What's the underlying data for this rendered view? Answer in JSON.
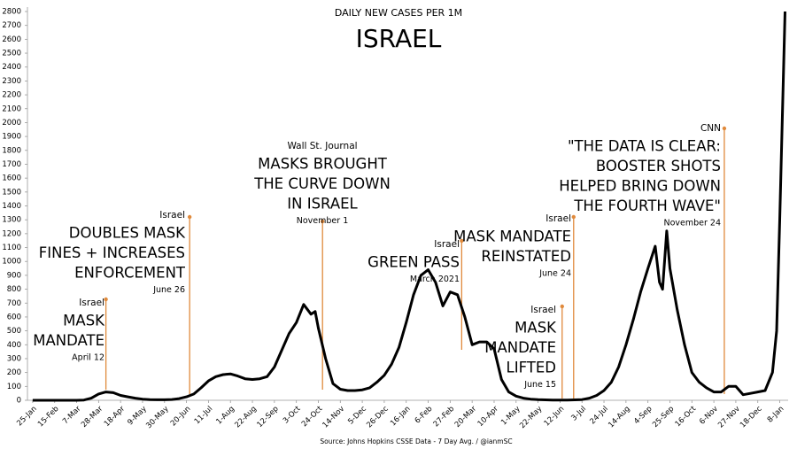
{
  "chart_data": {
    "type": "line",
    "title": "DAILY NEW CASES PER 1M",
    "subtitle": "ISRAEL",
    "source": "Source: Johns Hopkins CSSE Data - 7 Day Avg. / @ianmSC",
    "color": "#000000",
    "annotation_color": "#e08a3c",
    "x": [
      0,
      14,
      28,
      42,
      49,
      56,
      63,
      70,
      77,
      84,
      91,
      98,
      105,
      112,
      119,
      126,
      133,
      140,
      147,
      154,
      161,
      168,
      175,
      182,
      189,
      196,
      203,
      210,
      217,
      224,
      231,
      238,
      245,
      252,
      259,
      266,
      270,
      273,
      280,
      287,
      294,
      301,
      308,
      315,
      322,
      329,
      336,
      343,
      350,
      357,
      364,
      371,
      378,
      385,
      392,
      399,
      406,
      413,
      420,
      427,
      434,
      441,
      448,
      455,
      462,
      469,
      476,
      483,
      490,
      497,
      504,
      511,
      518,
      525,
      532,
      539,
      546,
      553,
      560,
      567,
      574,
      581,
      588,
      595,
      599,
      602,
      606,
      609,
      616,
      623,
      630,
      637,
      644,
      651,
      658,
      665,
      672,
      679,
      686,
      693,
      700,
      707,
      711,
      714,
      717,
      719
    ],
    "values": [
      0,
      0,
      0,
      0,
      2,
      15,
      45,
      60,
      55,
      35,
      25,
      15,
      8,
      5,
      4,
      4,
      6,
      12,
      25,
      45,
      90,
      140,
      170,
      185,
      190,
      175,
      155,
      150,
      155,
      170,
      240,
      360,
      480,
      560,
      690,
      620,
      640,
      520,
      300,
      120,
      80,
      70,
      70,
      75,
      90,
      130,
      180,
      260,
      380,
      560,
      760,
      900,
      940,
      850,
      680,
      780,
      760,
      600,
      400,
      420,
      420,
      370,
      150,
      60,
      30,
      15,
      8,
      5,
      3,
      2,
      2,
      2,
      3,
      5,
      15,
      35,
      70,
      130,
      240,
      400,
      580,
      780,
      950,
      1110,
      850,
      800,
      1220,
      950,
      650,
      400,
      200,
      130,
      90,
      60,
      60,
      100,
      100,
      40,
      50,
      60,
      70,
      200,
      500,
      1300,
      2200,
      2800
    ],
    "xlim": [
      -5,
      722
    ],
    "xticks": [
      {
        "value": 0,
        "label": "25-Jan"
      },
      {
        "value": 21,
        "label": "15-Feb"
      },
      {
        "value": 42,
        "label": "7-Mar"
      },
      {
        "value": 63,
        "label": "28-Mar"
      },
      {
        "value": 84,
        "label": "18-Apr"
      },
      {
        "value": 105,
        "label": "9-May"
      },
      {
        "value": 126,
        "label": "30-May"
      },
      {
        "value": 147,
        "label": "20-Jun"
      },
      {
        "value": 168,
        "label": "11-Jul"
      },
      {
        "value": 189,
        "label": "1-Aug"
      },
      {
        "value": 210,
        "label": "22-Aug"
      },
      {
        "value": 231,
        "label": "12-Sep"
      },
      {
        "value": 252,
        "label": "3-Oct"
      },
      {
        "value": 273,
        "label": "24-Oct"
      },
      {
        "value": 294,
        "label": "14-Nov"
      },
      {
        "value": 315,
        "label": "5-Dec"
      },
      {
        "value": 336,
        "label": "26-Dec"
      },
      {
        "value": 357,
        "label": "16-Jan"
      },
      {
        "value": 378,
        "label": "6-Feb"
      },
      {
        "value": 399,
        "label": "27-Feb"
      },
      {
        "value": 420,
        "label": "20-Mar"
      },
      {
        "value": 441,
        "label": "10-Apr"
      },
      {
        "value": 462,
        "label": "1-May"
      },
      {
        "value": 483,
        "label": "22-May"
      },
      {
        "value": 504,
        "label": "12-Jun"
      },
      {
        "value": 525,
        "label": "3-Jul"
      },
      {
        "value": 546,
        "label": "24-Jul"
      },
      {
        "value": 567,
        "label": "14-Aug"
      },
      {
        "value": 588,
        "label": "4-Sep"
      },
      {
        "value": 609,
        "label": "25-Sep"
      },
      {
        "value": 630,
        "label": "16-Oct"
      },
      {
        "value": 651,
        "label": "6-Nov"
      },
      {
        "value": 672,
        "label": "27-Nov"
      },
      {
        "value": 693,
        "label": "18-Dec"
      },
      {
        "value": 714,
        "label": "8-Jan"
      }
    ],
    "ylim": [
      0,
      2800
    ],
    "yticks": [
      0,
      100,
      200,
      300,
      400,
      500,
      600,
      700,
      800,
      900,
      1000,
      1100,
      1200,
      1300,
      1400,
      1500,
      1600,
      1700,
      1800,
      1900,
      2000,
      2100,
      2200,
      2300,
      2400,
      2500,
      2600,
      2700,
      2800
    ],
    "annotations": [
      {
        "source": "Israel",
        "text": [
          "MASK",
          "MANDATE"
        ],
        "date": "April 12",
        "x": 70
      },
      {
        "source": "Israel",
        "text": [
          "DOUBLES MASK",
          "FINES + INCREASES",
          "ENFORCEMENT"
        ],
        "date": "June 26",
        "x": 150
      },
      {
        "source": "Wall St. Journal",
        "text": [
          "MASKS BROUGHT",
          "THE CURVE DOWN",
          "IN ISRAEL"
        ],
        "date": "November 1",
        "x": 277
      },
      {
        "source": "Israel",
        "text": [
          "GREEN PASS"
        ],
        "date": "March 2021",
        "x": 410
      },
      {
        "source": "Israel",
        "text": [
          "MASK MANDATE",
          "REINSTATED"
        ],
        "date": "June 24",
        "x": 517
      },
      {
        "source": "Israel",
        "text": [
          "MASK",
          "MANDATE",
          "LIFTED"
        ],
        "date": "June 15",
        "x": 506
      },
      {
        "source": "CNN",
        "text": [
          "\"THE DATA IS CLEAR:",
          "BOOSTER SHOTS",
          "HELPED BRING DOWN",
          "THE FOURTH WAVE\""
        ],
        "date": "November 24",
        "x": 661
      }
    ]
  }
}
